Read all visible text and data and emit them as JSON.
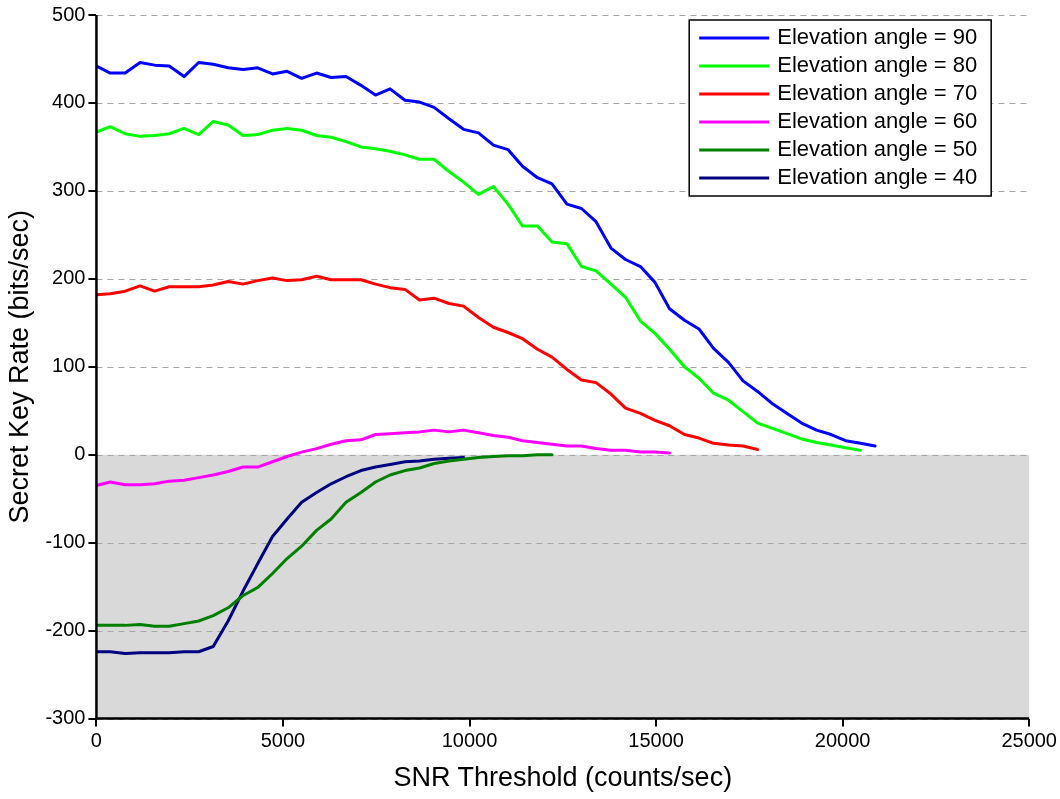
{
  "chart_data": {
    "type": "line",
    "xlabel": "SNR Threshold (counts/sec)",
    "ylabel": "Secret Key Rate (bits/sec)",
    "x": [
      0,
      370,
      770,
      1170,
      1560,
      1950,
      2350,
      2740,
      3130,
      3530,
      3930,
      4320,
      4720,
      5110,
      5500,
      5900,
      6290,
      6690,
      7090,
      7480,
      7870,
      8270,
      8660,
      9050,
      9450,
      9840,
      10240,
      10640,
      11030,
      11420,
      11820,
      12210,
      12610,
      13000,
      13390,
      13790,
      14180,
      14580,
      14970,
      15360,
      15760,
      16150,
      16540,
      16940,
      17330,
      17720,
      18120,
      18510,
      18900,
      19300,
      19690,
      20080,
      20480,
      20870
    ],
    "xlim": [
      0,
      25000
    ],
    "xticks": [
      0,
      5000,
      10000,
      15000,
      20000,
      25000
    ],
    "ylim": [
      -300,
      500
    ],
    "yticks": [
      -300,
      -200,
      -100,
      0,
      100,
      200,
      300,
      400,
      500
    ],
    "grid": "y",
    "legend": "top right",
    "marker": "none",
    "line_style": "solid",
    "bands": [
      {
        "axis": "y",
        "from": -300,
        "to": 0,
        "color": "#d9d9d9"
      }
    ],
    "series": [
      {
        "name": "Elevation angle = 90",
        "color": "#0000ff",
        "values": [
          442,
          434,
          434,
          446,
          443,
          442,
          430,
          446,
          444,
          440,
          438,
          440,
          433,
          436,
          428,
          434,
          429,
          430,
          420,
          409,
          416,
          403,
          401,
          395,
          382,
          370,
          366,
          352,
          347,
          328,
          315,
          308,
          285,
          280,
          265,
          235,
          222,
          214,
          196,
          166,
          153,
          143,
          121,
          105,
          84,
          72,
          58,
          47,
          36,
          28,
          23,
          16,
          13,
          10
        ]
      },
      {
        "name": "Elevation angle = 80",
        "color": "#00ff00",
        "values": [
          367,
          373,
          365,
          362,
          363,
          365,
          371,
          364,
          379,
          375,
          363,
          364,
          369,
          371,
          369,
          363,
          361,
          356,
          350,
          348,
          345,
          341,
          336,
          336,
          322,
          310,
          296,
          305,
          285,
          260,
          260,
          242,
          240,
          214,
          209,
          194,
          179,
          152,
          138,
          120,
          100,
          87,
          70,
          62,
          49,
          36,
          30,
          24,
          18,
          14,
          11,
          8,
          5,
          null
        ]
      },
      {
        "name": "Elevation angle = 70",
        "color": "#ff0000",
        "values": [
          182,
          183,
          186,
          192,
          186,
          191,
          191,
          191,
          193,
          197,
          194,
          198,
          201,
          198,
          199,
          203,
          199,
          199,
          199,
          194,
          190,
          188,
          176,
          178,
          172,
          169,
          156,
          145,
          139,
          132,
          120,
          111,
          97,
          85,
          82,
          69,
          53,
          47,
          39,
          33,
          23,
          19,
          13,
          11,
          10,
          6,
          null,
          null,
          null,
          null,
          null,
          null,
          null,
          null
        ]
      },
      {
        "name": "Elevation angle = 60",
        "color": "#ff00ff",
        "values": [
          -35,
          -31,
          -34,
          -34,
          -33,
          -30,
          -29,
          -26,
          -23,
          -19,
          -14,
          -14,
          -8,
          -2,
          3,
          7,
          12,
          16,
          17,
          23,
          24,
          25,
          26,
          28,
          26,
          28,
          25,
          22,
          20,
          16,
          14,
          12,
          10,
          10,
          7,
          5,
          5,
          3,
          3,
          2,
          null,
          null,
          null,
          null,
          null,
          null,
          null,
          null,
          null,
          null,
          null,
          null,
          null,
          null
        ]
      },
      {
        "name": "Elevation angle = 50",
        "color": "#007f00",
        "values": [
          -194,
          -194,
          -194,
          -193,
          -195,
          -195,
          -192,
          -189,
          -183,
          -174,
          -160,
          -151,
          -135,
          -118,
          -104,
          -86,
          -73,
          -54,
          -43,
          -31,
          -23,
          -18,
          -15,
          -10,
          -7,
          -5,
          -3,
          -2,
          -1,
          -1,
          0,
          0,
          null,
          null,
          null,
          null,
          null,
          null,
          null,
          null,
          null,
          null,
          null,
          null,
          null,
          null,
          null,
          null,
          null,
          null,
          null,
          null,
          null,
          null
        ]
      },
      {
        "name": "Elevation angle = 40",
        "color": "#000080",
        "values": [
          -224,
          -224,
          -226,
          -225,
          -225,
          -225,
          -224,
          -224,
          -218,
          -189,
          -155,
          -124,
          -93,
          -73,
          -54,
          -43,
          -33,
          -25,
          -18,
          -14,
          -11,
          -8,
          -7,
          -5,
          -4,
          -3,
          null,
          null,
          null,
          null,
          null,
          null,
          null,
          null,
          null,
          null,
          null,
          null,
          null,
          null,
          null,
          null,
          null,
          null,
          null,
          null,
          null,
          null,
          null,
          null,
          null,
          null,
          null,
          null
        ]
      }
    ]
  }
}
